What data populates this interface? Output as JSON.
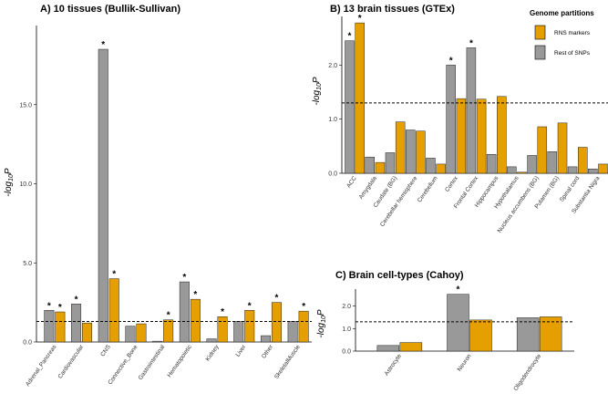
{
  "colors": {
    "rns": "#E69F00",
    "rest": "#999999"
  },
  "legend": {
    "title": "Genome partitions",
    "items": [
      "RNS markers",
      "Rest of SNPs"
    ]
  },
  "chart_data": [
    {
      "id": "A",
      "type": "bar",
      "title": "A) 10 tissues (Bullik-Sullivan)",
      "ylabel": "-log10P",
      "ylim": [
        0,
        20
      ],
      "yticks": [
        0,
        5,
        10,
        15
      ],
      "ytick_labels": [
        "0.0",
        "5.0",
        "10.0",
        "15.0"
      ],
      "threshold": 1.3,
      "categories": [
        "Adrenal_Pancreas",
        "Cardiovascular",
        "CNS",
        "Connective_Bone",
        "Gastrointestinal",
        "Hematopoietic",
        "Kidney",
        "Liver",
        "Other",
        "SkeletalMuscle"
      ],
      "series": [
        {
          "name": "Rest of SNPs",
          "values": [
            2.0,
            2.4,
            18.5,
            1.0,
            0.05,
            3.8,
            0.2,
            1.3,
            0.4,
            1.3
          ],
          "stars": [
            true,
            true,
            true,
            false,
            false,
            true,
            false,
            false,
            false,
            false
          ]
        },
        {
          "name": "RNS markers",
          "values": [
            1.9,
            1.2,
            4.0,
            1.15,
            1.4,
            2.7,
            1.6,
            2.0,
            2.5,
            1.95
          ],
          "stars": [
            true,
            false,
            true,
            false,
            true,
            true,
            true,
            true,
            true,
            true
          ]
        }
      ]
    },
    {
      "id": "B",
      "type": "bar",
      "title": "B) 13 brain tissues (GTEx)",
      "ylabel": "-log10P",
      "ylim": [
        0,
        2.9
      ],
      "yticks": [
        0,
        1,
        2
      ],
      "ytick_labels": [
        "0.0",
        "1.0",
        "2.0"
      ],
      "threshold": 1.3,
      "categories": [
        "ACC",
        "Amygdala",
        "Caudate (BG)",
        "Cerebellar hemisphere",
        "Cerebellum",
        "Cortex",
        "Frontal Cortex",
        "Hippocampus",
        "Hypothalamus",
        "Nucleus accumbens (BG)",
        "Putamen (BG)",
        "Spinal cord",
        "Substantia Nigra"
      ],
      "series": [
        {
          "name": "Rest of SNPs",
          "values": [
            2.45,
            0.3,
            0.38,
            0.8,
            0.28,
            2.0,
            2.32,
            0.35,
            0.12,
            0.33,
            0.4,
            0.12,
            0.08
          ],
          "stars": [
            true,
            false,
            false,
            false,
            false,
            true,
            true,
            false,
            false,
            false,
            false,
            false,
            false
          ]
        },
        {
          "name": "RNS markers",
          "values": [
            2.78,
            0.2,
            0.95,
            0.78,
            0.17,
            1.38,
            1.37,
            1.42,
            0.02,
            0.86,
            0.93,
            0.48,
            0.17
          ],
          "stars": [
            true,
            false,
            false,
            false,
            false,
            false,
            false,
            false,
            false,
            false,
            false,
            false,
            false
          ]
        }
      ]
    },
    {
      "id": "C",
      "type": "bar",
      "title": "C) Brain cell-types (Cahoy)",
      "ylabel": "-log10P",
      "ylim": [
        0,
        2.75
      ],
      "yticks": [
        0,
        1,
        2
      ],
      "ytick_labels": [
        "0.0",
        "1.0",
        "2.0"
      ],
      "threshold": 1.3,
      "categories": [
        "Astrocyte",
        "Neuron",
        "Oligodendrocyte"
      ],
      "series": [
        {
          "name": "Rest of SNPs",
          "values": [
            0.25,
            2.52,
            1.48
          ],
          "stars": [
            false,
            true,
            false
          ]
        },
        {
          "name": "RNS markers",
          "values": [
            0.38,
            1.38,
            1.52
          ],
          "stars": [
            false,
            false,
            false
          ]
        }
      ]
    }
  ]
}
